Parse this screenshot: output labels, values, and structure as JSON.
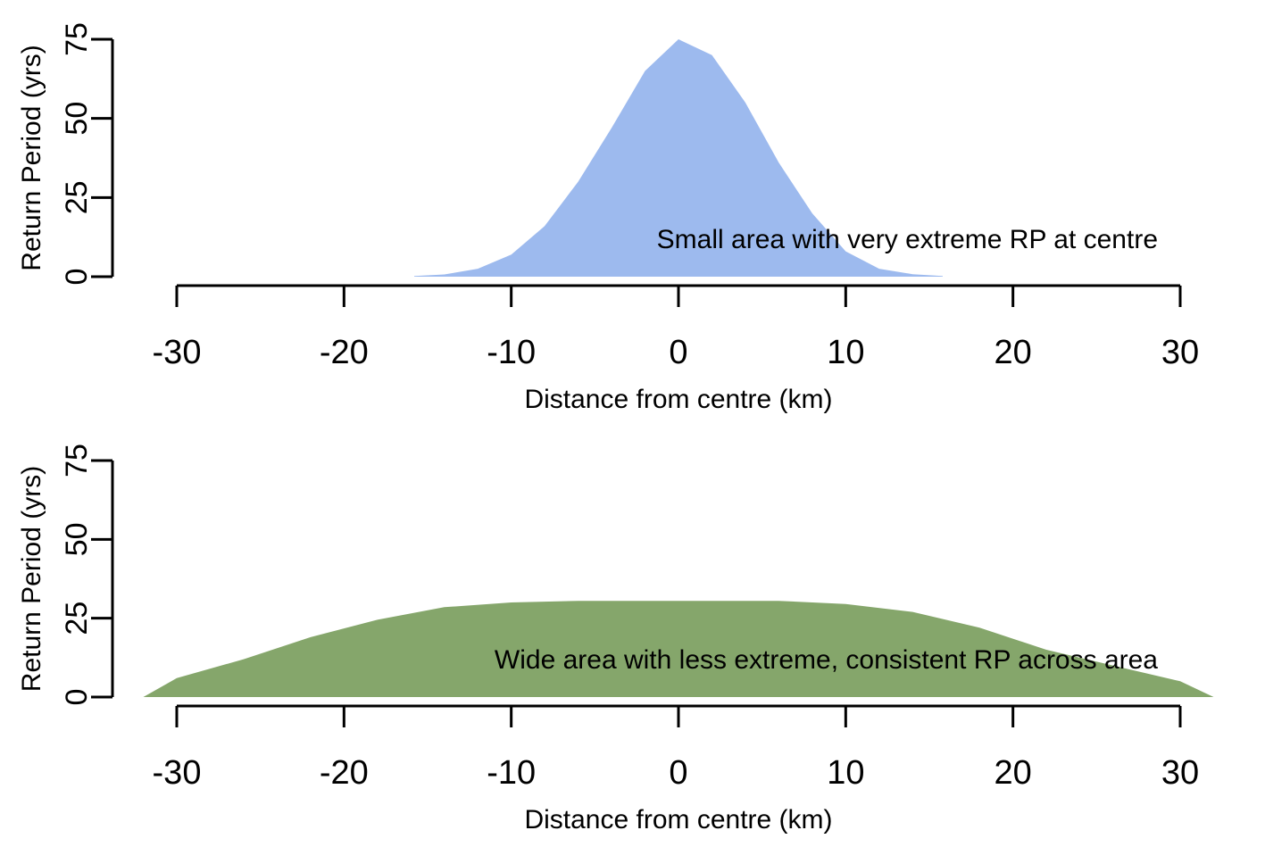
{
  "chart_data": [
    {
      "type": "area",
      "xlabel": "Distance from centre (km)",
      "ylabel": "Return Period (yrs)",
      "annotation": "Small area with very extreme RP at centre",
      "xlim": [
        -30,
        30
      ],
      "ylim": [
        0,
        75
      ],
      "x_ticks": [
        "-30",
        "-20",
        "-10",
        "0",
        "10",
        "20",
        "30"
      ],
      "y_ticks": [
        "0",
        "25",
        "50",
        "75"
      ],
      "fill_color": "#9dbaee",
      "series": [
        {
          "x": [
            -15.8,
            -14,
            -12,
            -10,
            -8,
            -6,
            -4,
            -2,
            0,
            2,
            4,
            6,
            8,
            10,
            12,
            14,
            15.8
          ],
          "y": [
            0.2,
            0.7,
            2.5,
            7,
            16,
            30,
            47,
            65,
            75,
            70,
            55,
            36,
            20,
            8,
            2.5,
            0.8,
            0.2
          ]
        }
      ]
    },
    {
      "type": "area",
      "xlabel": "Distance from centre (km)",
      "ylabel": "Return Period (yrs)",
      "annotation": "Wide area with less extreme, consistent RP across area",
      "xlim": [
        -30,
        30
      ],
      "ylim": [
        0,
        75
      ],
      "x_ticks": [
        "-30",
        "-20",
        "-10",
        "0",
        "10",
        "20",
        "30"
      ],
      "y_ticks": [
        "0",
        "25",
        "50",
        "75"
      ],
      "fill_color": "#85a66b",
      "series": [
        {
          "x": [
            -32,
            -30,
            -26,
            -22,
            -18,
            -14,
            -10,
            -6,
            0,
            6,
            10,
            14,
            18,
            22,
            26,
            30,
            32
          ],
          "y": [
            0,
            6,
            12,
            19,
            24.5,
            28.5,
            30,
            30.5,
            30.5,
            30.5,
            29.5,
            27,
            22,
            15,
            10,
            5,
            0
          ]
        }
      ]
    }
  ]
}
